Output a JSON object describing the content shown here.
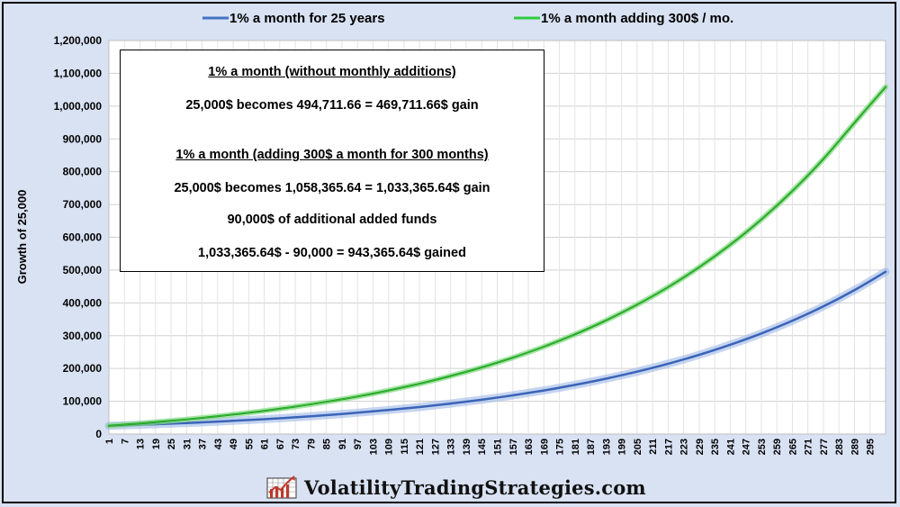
{
  "chart_data": {
    "type": "line",
    "ylabel": "Growth of 25,000",
    "xlabel": "",
    "ylim": [
      0,
      1200000
    ],
    "xlim": [
      1,
      301
    ],
    "yticks": [
      "0",
      "100,000",
      "200,000",
      "300,000",
      "400,000",
      "500,000",
      "600,000",
      "700,000",
      "800,000",
      "900,000",
      "1,000,000",
      "1,100,000",
      "1,200,000"
    ],
    "xtick_labels": [
      "1",
      "7",
      "13",
      "19",
      "25",
      "31",
      "37",
      "43",
      "49",
      "55",
      "61",
      "67",
      "73",
      "79",
      "85",
      "91",
      "97",
      "103",
      "109",
      "115",
      "121",
      "127",
      "133",
      "139",
      "145",
      "151",
      "157",
      "163",
      "169",
      "175",
      "181",
      "187",
      "193",
      "199",
      "205",
      "211",
      "217",
      "223",
      "229",
      "235",
      "241",
      "247",
      "253",
      "259",
      "265",
      "271",
      "277",
      "283",
      "289",
      "295"
    ],
    "grid": true,
    "legend_position": "top",
    "series": [
      {
        "name": "1% a month for 25 years",
        "color": "#4472c4",
        "x": [
          1,
          13,
          25,
          37,
          49,
          61,
          73,
          85,
          97,
          109,
          121,
          133,
          145,
          157,
          169,
          181,
          193,
          205,
          217,
          229,
          241,
          253,
          265,
          277,
          289,
          301
        ],
        "values": [
          25000,
          28170,
          31743,
          35768,
          40304,
          45415,
          51175,
          57664,
          64977,
          73218,
          82503,
          92965,
          104755,
          118040,
          133009,
          149876,
          168884,
          190300,
          214434,
          241628,
          272271,
          306799,
          345707,
          389548,
          438948,
          494712
        ]
      },
      {
        "name": "1% a month adding 300$ / mo.",
        "color": "#2ecc40",
        "x": [
          1,
          13,
          25,
          37,
          49,
          61,
          73,
          85,
          97,
          109,
          121,
          133,
          145,
          157,
          169,
          181,
          193,
          205,
          217,
          229,
          241,
          253,
          265,
          277,
          289,
          301
        ],
        "values": [
          25300,
          32375,
          40347,
          49330,
          59453,
          70860,
          83714,
          98198,
          114519,
          132911,
          153635,
          176989,
          203305,
          232959,
          266374,
          304028,
          346457,
          394268,
          448143,
          508851,
          577259,
          654345,
          741208,
          839089,
          949386,
          1058366
        ]
      }
    ]
  },
  "info_box": {
    "heading1": "1% a month   (without monthly additions)",
    "line1": "25,000$ becomes 494,711.66  =  469,711.66$ gain",
    "heading2": "1% a month   (adding 300$ a month for 300 months)",
    "line2": "25,000$ becomes 1,058,365.64  =  1,033,365.64$ gain",
    "line3": "90,000$ of additional added funds",
    "line4": "1,033,365.64$  -  90,000  =  943,365.64$ gained"
  },
  "branding": {
    "text": "VolatilityTradingStrategies.com",
    "logo_icon": "rising-chart-icon"
  },
  "colors": {
    "background": "#d9e2f3",
    "blue_series": "#4472c4",
    "green_series": "#2ecc40"
  }
}
